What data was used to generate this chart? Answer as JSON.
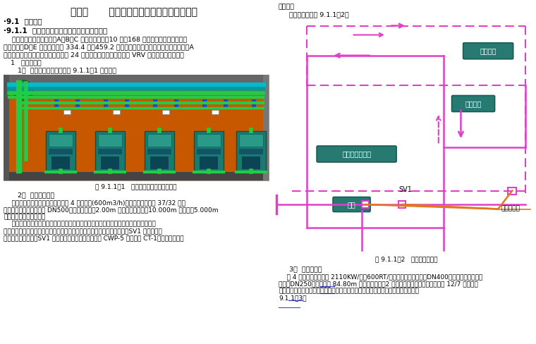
{
  "title": "第九章      空调通风系统施工方案及保证措施",
  "bg_color": "#ffffff",
  "text_color": "#000000",
  "teal_color": "#2a8a7e",
  "magenta_color": "#e040c8",
  "orange_color": "#e07820",
  "right_caption": "图 9.1.1-2   冷却水流程图。",
  "left_caption1": "图 9.1.1-1   制冷机房平面布置示意图。"
}
